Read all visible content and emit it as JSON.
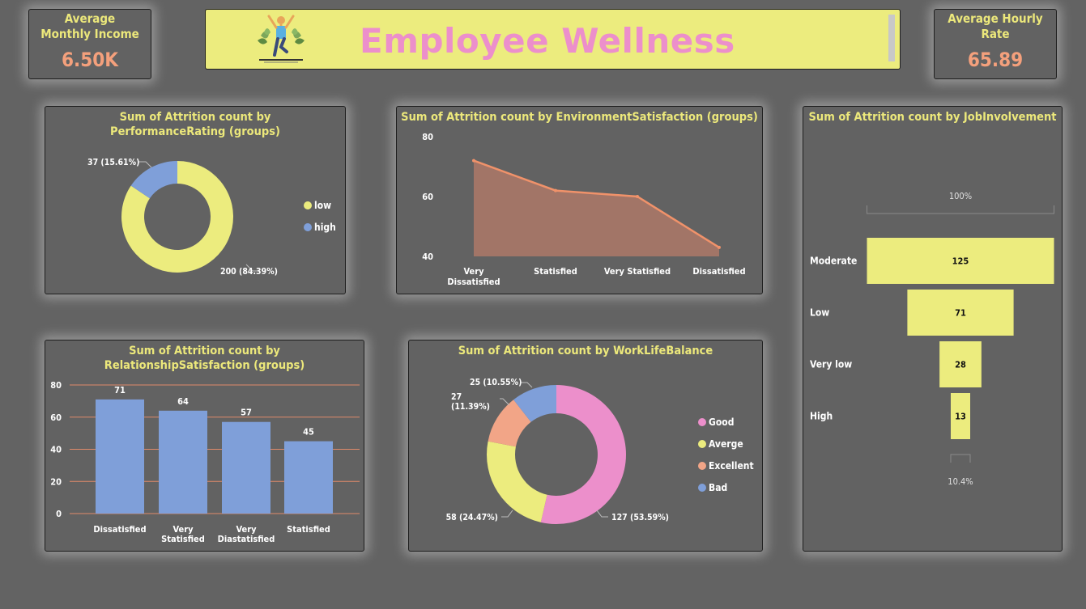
{
  "header": {
    "title": "Employee Wellness"
  },
  "kpis": {
    "income": {
      "label": "Average Monthly Income",
      "value": "6.50K"
    },
    "hourly": {
      "label": "Average Hourly Rate",
      "value": "65.89"
    }
  },
  "colors": {
    "yellow": "#ecec7e",
    "blue": "#7f9fd9",
    "pink": "#ec8fcb",
    "salmon": "#f2a587",
    "line": "#f0926a",
    "area": "#a27567",
    "title": "#ece87b"
  },
  "chart_data": [
    {
      "id": "performance",
      "type": "pie",
      "title": "Sum of Attrition count by PerformanceRating (groups)",
      "categories": [
        "low",
        "high"
      ],
      "values": [
        200,
        37
      ],
      "labels": [
        "200 (84.39%)",
        "37 (15.61%)"
      ],
      "legend": "right"
    },
    {
      "id": "environment",
      "type": "area",
      "title": "Sum of Attrition count by EnvironmentSatisfaction (groups)",
      "categories": [
        "Very Dissatisfied",
        "Statisfied",
        "Very Statisfied",
        "Dissatisfied"
      ],
      "values": [
        72,
        62,
        60,
        43
      ],
      "ylim": [
        40,
        80
      ],
      "yticks": [
        40,
        60,
        80
      ]
    },
    {
      "id": "job",
      "type": "bar",
      "subtype": "funnel",
      "title": "Sum of Attrition count by JobInvolvement",
      "categories": [
        "Moderate",
        "Low",
        "Very low",
        "High"
      ],
      "values": [
        125,
        71,
        28,
        13
      ],
      "top_label": "100%",
      "bottom_label": "10.4%"
    },
    {
      "id": "relationship",
      "type": "bar",
      "title": "Sum of Attrition count by RelationshipSatisfaction (groups)",
      "categories": [
        "Dissatisfied",
        "Very Statisfied",
        "Very Diastatisfied",
        "Statisfied"
      ],
      "category_labels": [
        "Dissatisfied",
        "Very Statisfied",
        "Very Diastatisfied",
        "Statisfied"
      ],
      "values": [
        71,
        64,
        57,
        45
      ],
      "ylim": [
        0,
        80
      ],
      "yticks": [
        0,
        20,
        40,
        60,
        80
      ]
    },
    {
      "id": "worklife",
      "type": "pie",
      "title": "Sum of Attrition count by WorkLifeBalance",
      "categories": [
        "Good",
        "Averge",
        "Excellent",
        "Bad"
      ],
      "values": [
        127,
        58,
        27,
        25
      ],
      "labels": [
        "127 (53.59%)",
        "58 (24.47%)",
        "27 (11.39%)",
        "25 (10.55%)"
      ],
      "legend": "right"
    }
  ]
}
